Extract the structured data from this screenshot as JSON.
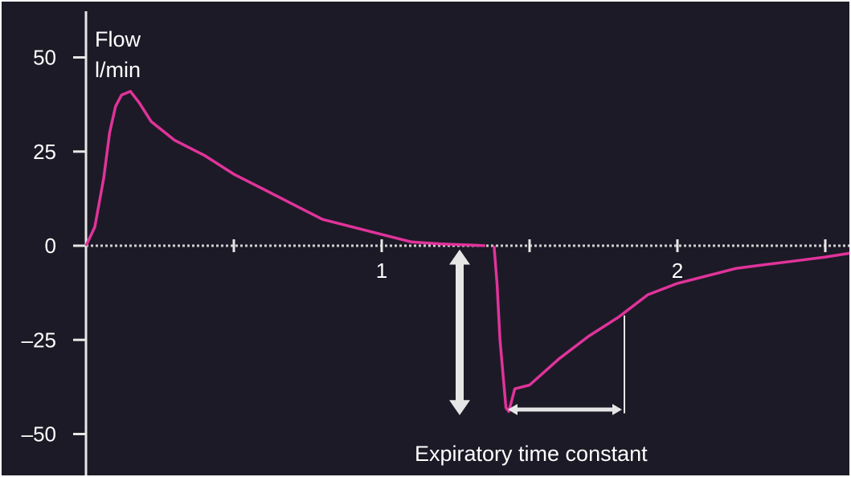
{
  "chart_data": {
    "type": "line",
    "title": "",
    "ylabel_line1": "Flow",
    "ylabel_line2": "l/min",
    "xlabel": "",
    "ylim": [
      -50,
      50
    ],
    "xlim": [
      0,
      2.5
    ],
    "y_ticks": [
      50,
      25,
      0,
      -25,
      -50
    ],
    "y_tick_labels": [
      "50",
      "25",
      "0",
      "–25",
      "–50"
    ],
    "x_tick_labels": [
      {
        "x": 1,
        "label": "1"
      },
      {
        "x": 2,
        "label": "2"
      }
    ],
    "x_tick_marks": [
      0.5,
      1.5,
      2.5
    ],
    "grid": false,
    "line_color": "#e0339a",
    "series": [
      {
        "values_x": [
          0,
          0.03,
          0.06,
          0.08,
          0.1,
          0.12,
          0.15,
          0.18,
          0.22,
          0.3,
          0.4,
          0.5,
          0.6,
          0.7,
          0.8,
          0.9,
          1.0,
          1.1,
          1.2,
          1.3,
          1.35
        ],
        "values_y": [
          0,
          5,
          18,
          30,
          37,
          40,
          41,
          38,
          33,
          28,
          24,
          19,
          15,
          11,
          7,
          5,
          3,
          1,
          0.5,
          0.2,
          0
        ],
        "values_x_expiration": [
          1.38,
          1.39,
          1.4,
          1.42,
          1.43,
          1.45,
          1.5,
          1.6,
          1.7,
          1.8,
          1.9,
          2.0,
          2.1,
          2.2,
          2.3,
          2.4,
          2.5,
          2.6
        ],
        "values_y_expiration": [
          0,
          -10,
          -25,
          -43,
          -44,
          -38,
          -37,
          -30,
          -24,
          -19,
          -13,
          -10,
          -8,
          -6,
          -5,
          -4,
          -3,
          -2
        ]
      }
    ],
    "annotations": {
      "expiratory_time_constant": "Expiratory time constant"
    }
  },
  "colors": {
    "background": "#1c1a26",
    "axis": "#e6e6e6",
    "zero_line": "#cfcfcf",
    "trace": "#e0339a",
    "annotation": "#e6e6e6"
  }
}
